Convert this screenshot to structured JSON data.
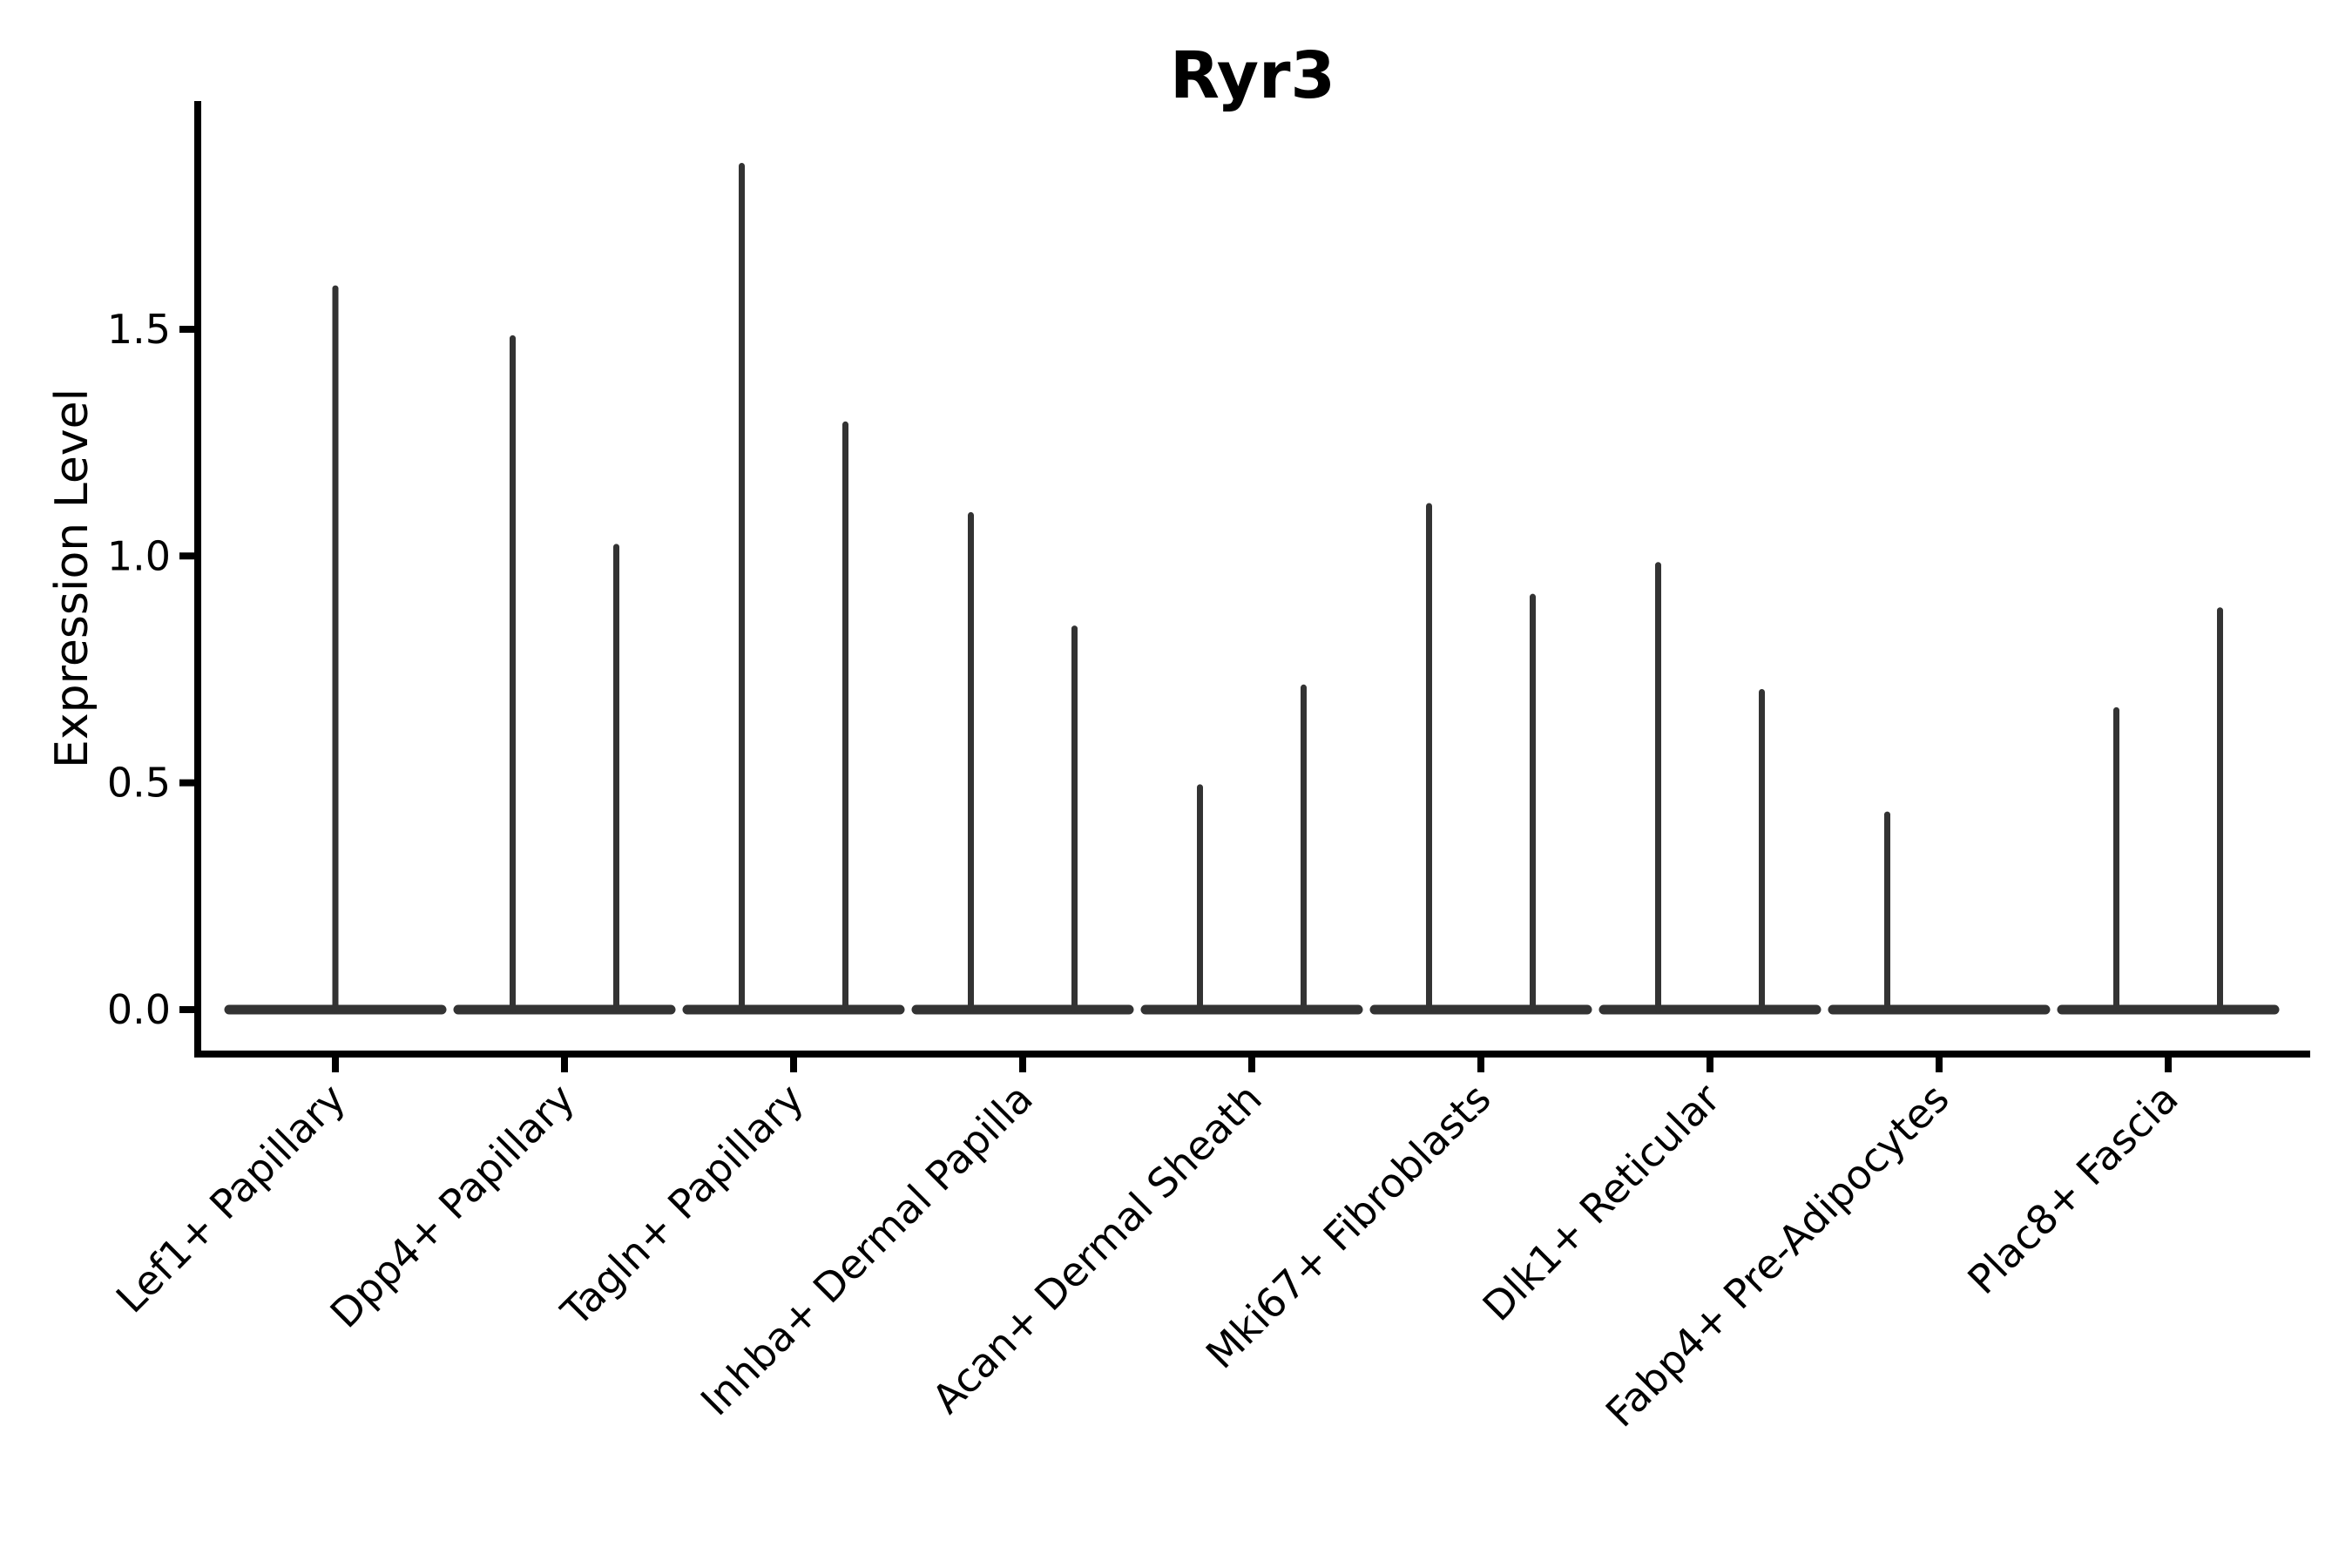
{
  "figure": {
    "background": "#ffffff"
  },
  "chart_data": {
    "type": "violin",
    "title": "Ryr3",
    "xlabel": "",
    "ylabel": "Expression Level",
    "ylim": [
      0,
      2.0
    ],
    "ytick_labels": [
      "0.0",
      "0.5",
      "1.0",
      "1.5"
    ],
    "ytick_values": [
      0.0,
      0.5,
      1.0,
      1.5
    ],
    "grid": false,
    "legend_position": "none",
    "x_tick_rotation_deg": 45,
    "categories": [
      "Lef1+ Papillary",
      "Dpp4+ Papillary",
      "Tagln+ Papillary",
      "Inhba+ Dermal Papilla",
      "Acan+ Dermal Sheath",
      "Mki67+ Fibroblasts",
      "Dlk1+ Reticular",
      "Fabp4+ Pre-Adipocytes",
      "Plac8+ Fascia"
    ],
    "violins": [
      {
        "category": "Lef1+ Papillary",
        "spikes": [
          {
            "position": "center",
            "max": 1.59
          }
        ]
      },
      {
        "category": "Dpp4+ Papillary",
        "spikes": [
          {
            "position": "left",
            "max": 1.48
          },
          {
            "position": "right",
            "max": 1.02
          }
        ]
      },
      {
        "category": "Tagln+ Papillary",
        "spikes": [
          {
            "position": "left",
            "max": 1.86
          },
          {
            "position": "right",
            "max": 1.29
          }
        ]
      },
      {
        "category": "Inhba+ Dermal Papilla",
        "spikes": [
          {
            "position": "left",
            "max": 1.09
          },
          {
            "position": "right",
            "max": 0.84
          }
        ]
      },
      {
        "category": "Acan+ Dermal Sheath",
        "spikes": [
          {
            "position": "left",
            "max": 0.49
          },
          {
            "position": "right",
            "max": 0.71
          }
        ]
      },
      {
        "category": "Mki67+ Fibroblasts",
        "spikes": [
          {
            "position": "left",
            "max": 1.11
          },
          {
            "position": "right",
            "max": 0.91
          }
        ]
      },
      {
        "category": "Dlk1+ Reticular",
        "spikes": [
          {
            "position": "left",
            "max": 0.98
          },
          {
            "position": "right",
            "max": 0.7
          }
        ]
      },
      {
        "category": "Fabp4+ Pre-Adipocytes",
        "spikes": [
          {
            "position": "left",
            "max": 0.43
          }
        ]
      },
      {
        "category": "Plac8+ Fascia",
        "spikes": [
          {
            "position": "left",
            "max": 0.66
          },
          {
            "position": "right",
            "max": 0.88
          }
        ]
      }
    ],
    "colors": {
      "violin_line": "#333333",
      "axis_line": "#000000",
      "text": "#000000",
      "background": "#ffffff"
    }
  }
}
